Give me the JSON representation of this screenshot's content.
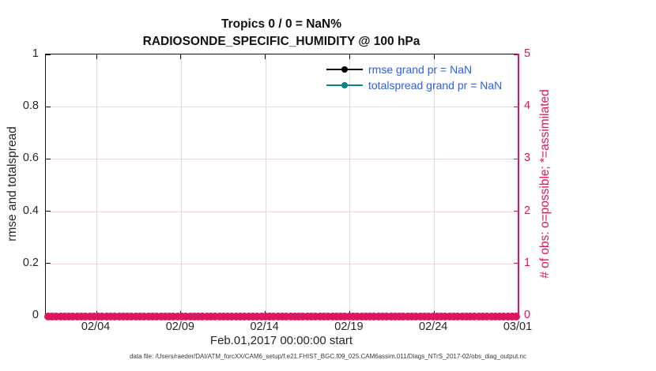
{
  "chart_data": {
    "type": "line",
    "title": "Tropics 0 / 0 = NaN%",
    "subtitle": "RADIOSONDE_SPECIFIC_HUMIDITY @ 100 hPa",
    "xlabel": "Feb.01,2017 00:00:00 start",
    "grid": {
      "vertical_color": "#DCDCDC",
      "horizontal_color": "#F7D5E0",
      "grid_on": true
    },
    "x_axis": {
      "domain_days": [
        0,
        28
      ],
      "tick_days": [
        3,
        8,
        13,
        18,
        23,
        28
      ],
      "tick_labels": [
        "02/04",
        "02/09",
        "02/14",
        "02/19",
        "02/24",
        "03/01"
      ],
      "axis_color": "#111111"
    },
    "left_axis": {
      "label": "rmse and totalspread",
      "range": [
        0,
        1
      ],
      "tick_values": [
        0,
        0.2,
        0.4,
        0.6,
        0.8,
        1
      ],
      "tick_labels": [
        "0",
        "0.2",
        "0.4",
        "0.6",
        "0.8",
        "1"
      ],
      "color": "#262626",
      "axis_color": "#111111"
    },
    "right_axis": {
      "label": "# of obs: o=possible; *=assimilated",
      "range": [
        0,
        5
      ],
      "tick_values": [
        0,
        1,
        2,
        3,
        4,
        5
      ],
      "tick_labels": [
        "0",
        "1",
        "2",
        "3",
        "4",
        "5"
      ],
      "color": "#DD1660",
      "axis_color": "#DD1660"
    },
    "legend": {
      "position": "top-right-inside",
      "text_color": "#2B5FE8",
      "items": [
        {
          "label": "rmse grand pr = NaN",
          "color": "#000000",
          "marker": "filled-circle"
        },
        {
          "label": "totalspread grand pr = NaN",
          "color": "#108080",
          "marker": "filled-circle"
        }
      ]
    },
    "series": [
      {
        "name": "rmse",
        "color": "#000000",
        "values": [],
        "note": "all NaN, nothing plotted"
      },
      {
        "name": "totalspread",
        "color": "#108080",
        "values": [],
        "note": "all NaN, nothing plotted"
      }
    ],
    "obs_markers": {
      "description": "# of obs per time: o=possible and *=assimilated, every value 0, plotted along y=0 on right axis scale",
      "value": 0,
      "count": 113,
      "color": "#DD1660"
    }
  },
  "footer": {
    "text": "data file: /Users/raeder/DAI/ATM_forcXX/CAM6_setup/f.e21.FHIST_BGC.f09_025.CAM6assim.011/Diags_NTrS_2017-02/obs_diag_output.nc"
  }
}
